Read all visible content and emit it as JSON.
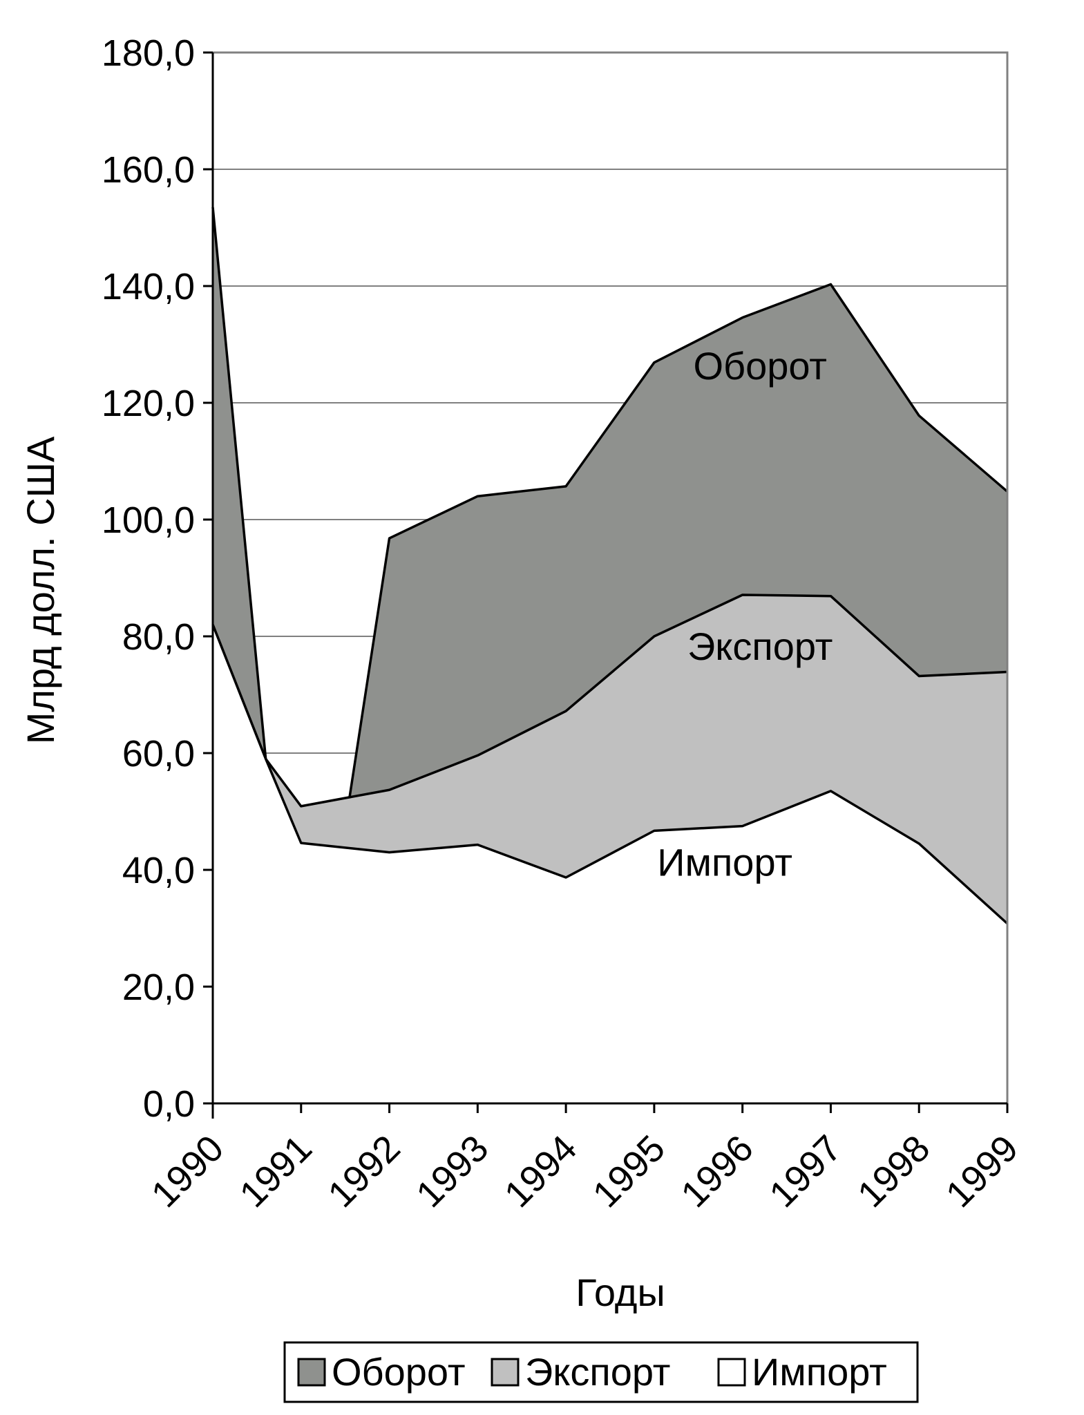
{
  "chart_data": {
    "type": "area",
    "stacked": false,
    "title": "",
    "xlabel": "Годы",
    "ylabel": "Млрд долл. США",
    "ylim": [
      0,
      180
    ],
    "y_step": 20,
    "y_tick_labels": [
      "0,0",
      "20,0",
      "40,0",
      "60,0",
      "80,0",
      "100,0",
      "120,0",
      "140,0",
      "160,0",
      "180,0"
    ],
    "grid": true,
    "legend_position": "bottom",
    "categories": [
      "1990",
      "1991",
      "1992",
      "1993",
      "1994",
      "1995",
      "1996",
      "1997",
      "1998",
      "1999"
    ],
    "series": [
      {
        "name": "Оборот",
        "color": "#8f918e",
        "values": [
          153.5,
          59.0,
          96.8,
          104.0,
          105.7,
          126.9,
          134.6,
          140.3,
          117.8,
          104.8
        ],
        "segments": [
          {
            "x": [
              1990,
              1990.6
            ],
            "y": [
              153.5,
              59.0
            ]
          },
          {
            "x": [
              1991.55,
              1992,
              1993,
              1994,
              1995,
              1996,
              1997,
              1998,
              1999
            ],
            "y": [
              52.5,
              96.8,
              104.0,
              105.7,
              126.9,
              134.6,
              140.3,
              117.8,
              104.8
            ]
          }
        ]
      },
      {
        "name": "Экспорт",
        "color": "#c0c0c0",
        "values": [
          82.0,
          59.0,
          53.7,
          59.6,
          67.2,
          80.0,
          87.1,
          86.9,
          73.2,
          73.9
        ],
        "points": {
          "x": [
            1990,
            1990.6,
            1991,
            1992,
            1993,
            1994,
            1995,
            1996,
            1997,
            1998,
            1999
          ],
          "y": [
            82.0,
            59.0,
            50.9,
            53.7,
            59.6,
            67.2,
            80.0,
            87.1,
            86.9,
            73.2,
            73.9
          ]
        }
      },
      {
        "name": "Импорт",
        "color": "#ffffff",
        "values": [
          82.0,
          59.0,
          43.0,
          44.3,
          38.7,
          46.7,
          47.5,
          53.5,
          44.5,
          30.8
        ],
        "points": {
          "x": [
            1990,
            1990.6,
            1991,
            1992,
            1993,
            1994,
            1995,
            1996,
            1997,
            1998,
            1999
          ],
          "y": [
            82.0,
            59.0,
            44.6,
            43.0,
            44.3,
            38.7,
            46.7,
            47.5,
            53.5,
            44.5,
            30.8
          ]
        }
      }
    ],
    "annotations": [
      {
        "text": "Оборот",
        "x": 1996.2,
        "y": 124.0
      },
      {
        "text": "Экспорт",
        "x": 1996.2,
        "y": 76.0
      },
      {
        "text": "Импорт",
        "x": 1995.8,
        "y": 39.0
      }
    ],
    "legend": [
      {
        "label": "Оборот",
        "color": "#8f918e"
      },
      {
        "label": "Экспорт",
        "color": "#c0c0c0"
      },
      {
        "label": "Импорт",
        "color": "#ffffff"
      }
    ]
  }
}
